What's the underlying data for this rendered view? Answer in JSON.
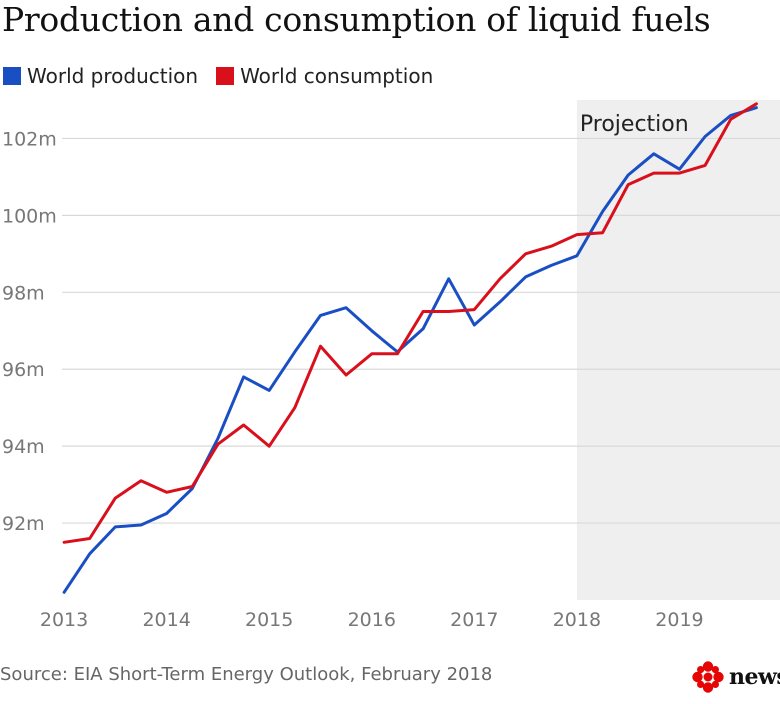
{
  "chart_data": {
    "type": "line",
    "title": "Production and consumption of liquid fuels",
    "xlabel": "",
    "ylabel": "",
    "x": [
      2013.0,
      2013.25,
      2013.5,
      2013.75,
      2014.0,
      2014.25,
      2014.5,
      2014.75,
      2015.0,
      2015.25,
      2015.5,
      2015.75,
      2016.0,
      2016.25,
      2016.5,
      2016.75,
      2017.0,
      2017.25,
      2017.5,
      2017.75,
      2018.0,
      2018.25,
      2018.5,
      2018.75,
      2019.0,
      2019.25,
      2019.5,
      2019.75
    ],
    "series": [
      {
        "name": "World production",
        "color": "#1a4fc4",
        "values": [
          90.2,
          91.2,
          91.9,
          91.95,
          92.25,
          92.9,
          94.2,
          95.8,
          95.45,
          96.45,
          97.4,
          97.6,
          97.0,
          96.45,
          97.05,
          98.35,
          97.15,
          97.75,
          98.4,
          98.7,
          98.95,
          100.1,
          101.05,
          101.6,
          101.2,
          102.05,
          102.6,
          102.8
        ]
      },
      {
        "name": "World consumption",
        "color": "#d9101b",
        "values": [
          91.5,
          91.6,
          92.65,
          93.1,
          92.8,
          92.95,
          94.05,
          94.55,
          94.0,
          95.0,
          96.6,
          95.85,
          96.4,
          96.4,
          97.5,
          97.5,
          97.55,
          98.35,
          99.0,
          99.2,
          99.5,
          99.55,
          100.8,
          101.1,
          101.1,
          101.3,
          102.5,
          102.9
        ]
      }
    ],
    "ylim": [
      90,
      103
    ],
    "yticks": [
      92,
      94,
      96,
      98,
      100,
      102
    ],
    "ytick_labels": [
      "92m",
      "94m",
      "96m",
      "98m",
      "100m",
      "102m"
    ],
    "xlim": [
      2012.98,
      2019.98
    ],
    "xticks": [
      2013,
      2014,
      2015,
      2016,
      2017,
      2018,
      2019
    ],
    "xtick_labels": [
      "2013",
      "2014",
      "2015",
      "2016",
      "2017",
      "2018",
      "2019"
    ],
    "shaded_region": {
      "x_start": 2018.0,
      "x_end": 2019.98,
      "label": "Projection",
      "color": "#efefef"
    },
    "grid": "horizontal",
    "legend_position": "top-left"
  },
  "footer": {
    "source": "Source: EIA Short-Term Energy Outlook, February 2018"
  },
  "logo": {
    "word": "news",
    "icon": "cbc-gem-icon",
    "color": "#e60505"
  }
}
